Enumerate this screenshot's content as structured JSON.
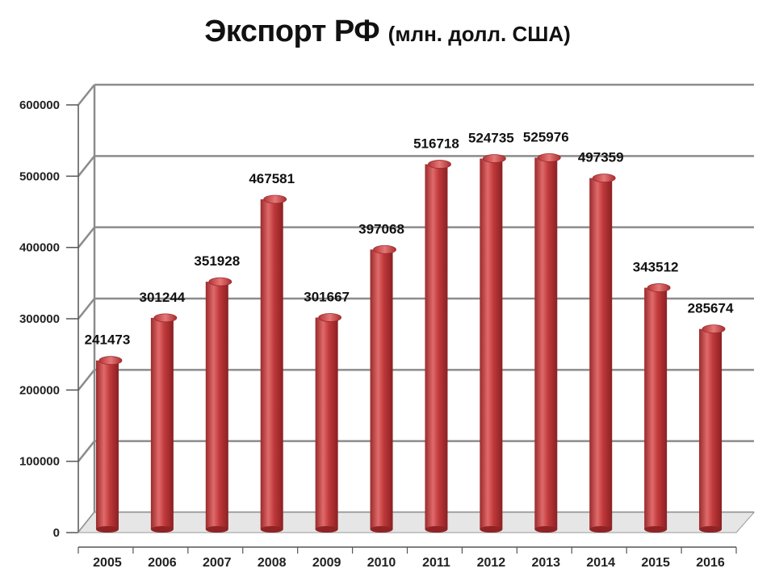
{
  "chart_data": {
    "type": "bar",
    "title": "Экспорт РФ",
    "subtitle": "(млн. долл. США)",
    "categories": [
      "2005",
      "2006",
      "2007",
      "2008",
      "2009",
      "2010",
      "2011",
      "2012",
      "2013",
      "2014",
      "2015",
      "2016"
    ],
    "values": [
      241473,
      301244,
      351928,
      467581,
      301667,
      397068,
      516718,
      524735,
      525976,
      497359,
      343512,
      285674
    ],
    "data_labels": [
      "241473",
      "301244",
      "351928",
      "467581",
      "301667",
      "397068",
      "516718",
      "524735",
      "525976",
      "497359",
      "343512",
      "285674"
    ],
    "ylim": [
      0,
      600000
    ],
    "yticks": [
      "0",
      "100000",
      "200000",
      "300000",
      "400000",
      "500000",
      "600000"
    ],
    "grid": true,
    "legend": "none",
    "bar_color": "#c0393b",
    "bar_highlight": "#e06a6a",
    "bar_shadow": "#8f2325",
    "grid_color": "#8c8c8c"
  }
}
